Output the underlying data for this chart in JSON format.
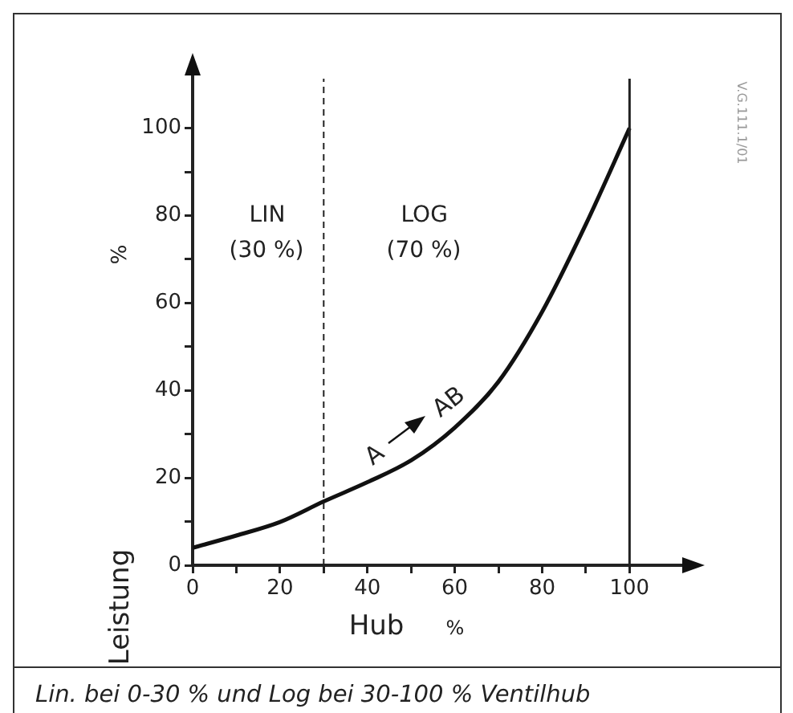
{
  "chart_data": {
    "type": "line",
    "xlabel": "Hub",
    "ylabel": "%",
    "x": [
      0,
      10,
      20,
      30,
      40,
      50,
      60,
      70,
      80,
      90,
      100
    ],
    "series": [
      {
        "color": "#111111",
        "values": [
          4,
          6.8,
          9.9,
          14.6,
          19,
          24,
          31.5,
          42,
          58,
          78,
          100
        ]
      }
    ],
    "xlim": [
      0,
      115
    ],
    "ylim": [
      0,
      115
    ],
    "xticks": [
      0,
      {
        "value": 10,
        "label": null
      },
      20,
      {
        "value": 30,
        "label": null
      },
      40,
      {
        "value": 50,
        "label": null
      },
      60,
      {
        "value": 70,
        "label": null
      },
      80,
      {
        "value": 90,
        "label": null
      },
      100
    ],
    "yticks": [
      0,
      {
        "value": 10,
        "label": null
      },
      20,
      {
        "value": 30,
        "label": null
      },
      40,
      {
        "value": 50,
        "label": null
      },
      60,
      {
        "value": 70,
        "label": null
      },
      80,
      {
        "value": 90,
        "label": null
      },
      100
    ],
    "ref_lines": [
      {
        "axis": "x",
        "value": 30,
        "line_style": "dashed"
      },
      {
        "axis": "x",
        "value": 100,
        "line_style": "solid"
      }
    ],
    "annotations": [
      "LIN",
      "(30 %)",
      "LOG",
      "(70 %)",
      "A",
      "AB",
      "Leistung",
      "%",
      "V.G.111.1/01",
      "Lin. bei 0-30 % und Log bei 30-100 % Ventilhub"
    ],
    "marker": "none",
    "grid": false,
    "legend": false
  }
}
